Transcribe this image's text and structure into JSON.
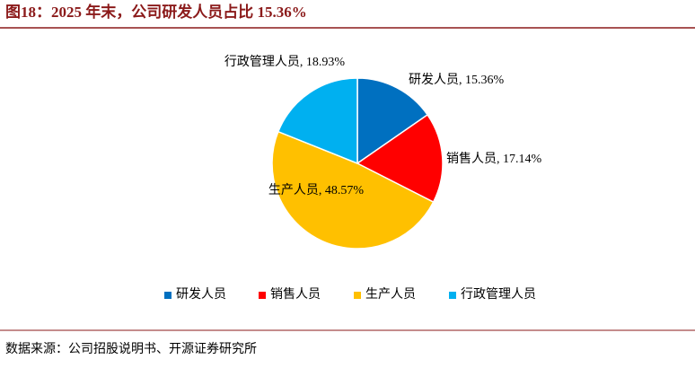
{
  "chart_data": {
    "type": "pie",
    "title": "图18：2025 年末，公司研发人员占比 15.36%",
    "categories": [
      "研发人员",
      "销售人员",
      "生产人员",
      "行政管理人员"
    ],
    "values": [
      15.36,
      17.14,
      48.57,
      18.93
    ],
    "value_labels": [
      "研发人员, 15.36%",
      "销售人员, 17.14%",
      "生产人员, 48.57%",
      "行政管理人员, 18.93%"
    ],
    "colors": [
      "#0070c0",
      "#ff0000",
      "#ffc000",
      "#00b0f0"
    ],
    "legend": "bottom",
    "source": "数据来源：公司招股说明书、开源证券研究所"
  }
}
